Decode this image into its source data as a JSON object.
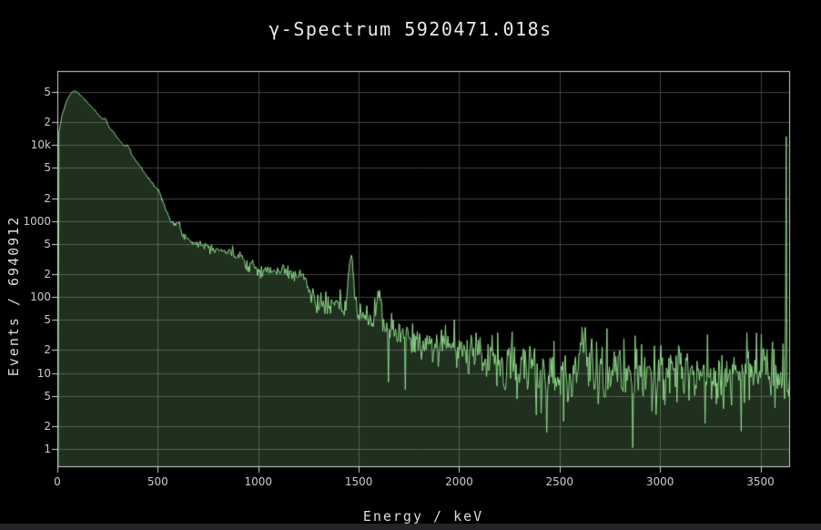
{
  "colors": {
    "background": "#000000",
    "line": "#8fd98a",
    "fill": "rgba(143,217,138,0.22)",
    "grid": "#424242",
    "axis_border": "#d0d3d4",
    "tick_label": "#cccccc",
    "title": "#ebebeb",
    "axis_title": "#dcdcdc",
    "bottom_bar": "#222428"
  },
  "chart_data": {
    "type": "area",
    "title": "γ-Spectrum 5920471.018s",
    "xlabel": "Energy / keV",
    "ylabel": "Events / 6940912",
    "total_events": 6940912,
    "live_time_s": "5920471.018",
    "y_scale": "log",
    "grid": true,
    "legend": false,
    "x_range": [
      0,
      3647
    ],
    "y_range": [
      0.575,
      94500
    ],
    "x_ticks": [
      0,
      500,
      1000,
      1500,
      2000,
      2500,
      3000,
      3500
    ],
    "y_ticks": [
      {
        "value": 50000,
        "label": "5"
      },
      {
        "value": 20000,
        "label": "2"
      },
      {
        "value": 10000,
        "label": "10k"
      },
      {
        "value": 5000,
        "label": "5"
      },
      {
        "value": 2000,
        "label": "2"
      },
      {
        "value": 1000,
        "label": "1000"
      },
      {
        "value": 500,
        "label": "5"
      },
      {
        "value": 200,
        "label": "2"
      },
      {
        "value": 100,
        "label": "100"
      },
      {
        "value": 50,
        "label": "5"
      },
      {
        "value": 20,
        "label": "2"
      },
      {
        "value": 10,
        "label": "10"
      },
      {
        "value": 5,
        "label": "5"
      },
      {
        "value": 2,
        "label": "2"
      },
      {
        "value": 1,
        "label": "1"
      }
    ],
    "bin_width_kev": 4,
    "envelope": [
      [
        4,
        0.6
      ],
      [
        8,
        15000
      ],
      [
        25,
        26000
      ],
      [
        50,
        40000
      ],
      [
        70,
        49000
      ],
      [
        85,
        52000
      ],
      [
        100,
        49500
      ],
      [
        120,
        44000
      ],
      [
        140,
        39000
      ],
      [
        160,
        34000
      ],
      [
        180,
        30000
      ],
      [
        210,
        24000
      ],
      [
        240,
        19500
      ],
      [
        270,
        15800
      ],
      [
        300,
        12500
      ],
      [
        330,
        10000
      ],
      [
        360,
        8100
      ],
      [
        390,
        6300
      ],
      [
        420,
        4900
      ],
      [
        450,
        3800
      ],
      [
        480,
        3000
      ],
      [
        510,
        2350
      ],
      [
        540,
        1500
      ],
      [
        560,
        1050
      ],
      [
        580,
        820
      ],
      [
        610,
        700
      ],
      [
        650,
        580
      ],
      [
        700,
        510
      ],
      [
        760,
        460
      ],
      [
        820,
        415
      ],
      [
        870,
        370
      ],
      [
        915,
        300
      ],
      [
        960,
        250
      ],
      [
        1010,
        228
      ],
      [
        1080,
        215
      ],
      [
        1150,
        208
      ],
      [
        1210,
        195
      ],
      [
        1235,
        175
      ],
      [
        1255,
        115
      ],
      [
        1275,
        92
      ],
      [
        1310,
        82
      ],
      [
        1360,
        77
      ],
      [
        1420,
        70
      ],
      [
        1475,
        62
      ],
      [
        1530,
        58
      ],
      [
        1580,
        52
      ],
      [
        1625,
        45
      ],
      [
        1700,
        34
      ],
      [
        1800,
        28
      ],
      [
        1900,
        24
      ],
      [
        2000,
        21
      ],
      [
        2100,
        18
      ],
      [
        2200,
        14.5
      ],
      [
        2300,
        11.5
      ],
      [
        2420,
        10
      ],
      [
        2520,
        10
      ],
      [
        2614,
        12
      ],
      [
        2700,
        10.5
      ],
      [
        2800,
        9.8
      ],
      [
        2900,
        9.5
      ],
      [
        3000,
        9.8
      ],
      [
        3100,
        9.6
      ],
      [
        3200,
        9.8
      ],
      [
        3300,
        10
      ],
      [
        3400,
        10.2
      ],
      [
        3500,
        10.5
      ],
      [
        3600,
        11
      ],
      [
        3644,
        11
      ]
    ],
    "peaks": [
      {
        "center": 239,
        "amp": 2600,
        "sigma": 8
      },
      {
        "center": 352,
        "amp": 1300,
        "sigma": 8
      },
      {
        "center": 600,
        "amp": 190,
        "sigma": 13
      },
      {
        "center": 911,
        "amp": 85,
        "sigma": 9
      },
      {
        "center": 969,
        "amp": 40,
        "sigma": 8
      },
      {
        "center": 1120,
        "amp": 30,
        "sigma": 9
      },
      {
        "center": 1461,
        "amp": 275,
        "sigma": 10
      },
      {
        "center": 1600,
        "amp": 70,
        "sigma": 9
      },
      {
        "center": 2614,
        "amp": 14,
        "sigma": 12
      }
    ],
    "spikes": [
      {
        "energy": 3628,
        "counts": 13000
      },
      {
        "energy": 2858,
        "counts": 1.05
      },
      {
        "energy": 2384,
        "counts": 2.8
      },
      {
        "energy": 2520,
        "counts": 2.3
      }
    ],
    "noise": {
      "model": "poisson-log",
      "seed": 7,
      "gain": 1.5,
      "deep_dip_prob": 0.012
    }
  }
}
